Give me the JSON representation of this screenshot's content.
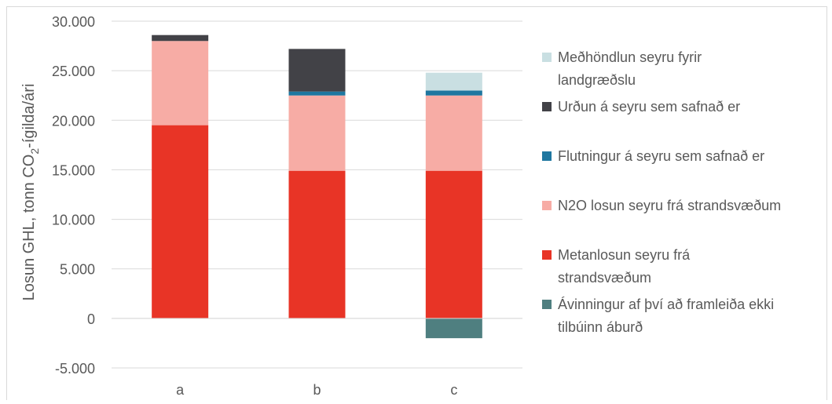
{
  "chart_data": {
    "type": "bar",
    "stacked": true,
    "categories": [
      "a",
      "b",
      "c"
    ],
    "ylabel": "Losun GHL, tonn CO2-ígilda/ári",
    "ylabel_parts": {
      "before": "Losun GHL, tonn CO",
      "subscript": "2",
      "after": "-ígilda/ári"
    },
    "ylim": [
      -5000,
      30000
    ],
    "yticks": [
      30000,
      25000,
      20000,
      15000,
      10000,
      5000,
      0,
      -5000
    ],
    "ytick_labels": [
      "30.000",
      "25.000",
      "20.000",
      "15.000",
      "10.000",
      "5.000",
      "0",
      "-5.000"
    ],
    "grid": true,
    "legend_position": "right",
    "series": [
      {
        "name": "Metanlosun seyru frá strandsvæðum",
        "color": "#e83426",
        "values": [
          19500,
          14900,
          14900
        ]
      },
      {
        "name": "N2O losun seyru frá strandsvæðum",
        "color": "#f7aca5",
        "values": [
          8500,
          7600,
          7600
        ]
      },
      {
        "name": "Flutningur á seyru sem safnað er",
        "color": "#1f77a0",
        "values": [
          0,
          400,
          500
        ]
      },
      {
        "name": "Urðun á seyru sem safnað er",
        "color": "#424247",
        "values": [
          600,
          4300,
          0
        ]
      },
      {
        "name": "Meðhöndlun seyru fyrir landgræðslu",
        "color": "#c9dfe2",
        "values": [
          0,
          0,
          1800
        ]
      },
      {
        "name": "Ávinningur af því að framleiða ekki tilbúinn áburð",
        "color": "#4f7f80",
        "values": [
          0,
          0,
          -2000
        ]
      }
    ]
  },
  "legend": [
    {
      "color": "#c9dfe2",
      "lines": [
        "Meðhöndlun seyru fyrir",
        "landgræðslu"
      ]
    },
    {
      "color": "#424247",
      "lines": [
        "Urðun á seyru sem safnað er"
      ]
    },
    {
      "color": "#1f77a0",
      "lines": [
        "Flutningur á seyru sem safnað er"
      ]
    },
    {
      "color": "#f7aca5",
      "lines": [
        "N2O losun seyru frá strandsvæðum"
      ]
    },
    {
      "color": "#e83426",
      "lines": [
        "Metanlosun seyru frá",
        "strandsvæðum"
      ]
    },
    {
      "color": "#4f7f80",
      "lines": [
        "Ávinningur af því að framleiða ekki",
        "tilbúinn áburð"
      ]
    }
  ],
  "colors": {
    "grid": "#d9d9d9",
    "axis_text": "#595959",
    "frame": "#d9d9d9"
  }
}
